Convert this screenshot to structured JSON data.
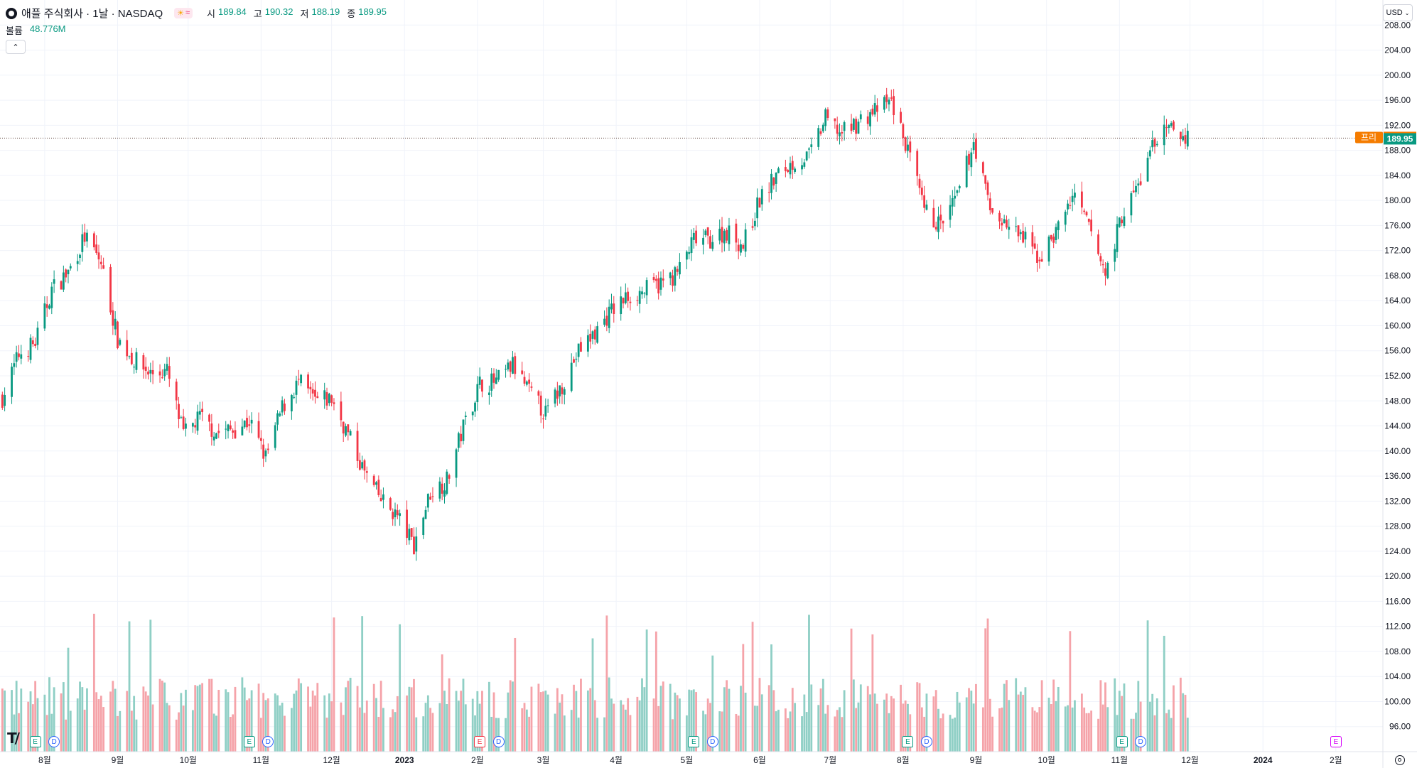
{
  "header": {
    "symbol_title": "애플 주식회사 · 1날 · NASDAQ",
    "ohlc": [
      {
        "key": "시",
        "value": "189.84"
      },
      {
        "key": "고",
        "value": "190.32"
      },
      {
        "key": "저",
        "value": "188.19"
      },
      {
        "key": "종",
        "value": "189.95"
      }
    ],
    "volume_label": "볼륨",
    "volume_value": "48.776M",
    "currency": "USD"
  },
  "colors": {
    "up": "#089981",
    "down": "#f23645",
    "volume_up": "#8fcfc5",
    "volume_down": "#f5a3a9",
    "premarket": "#f57c00",
    "grid": "#f0f3fa",
    "axis_text": "#131722"
  },
  "icons": {
    "settings": "gear-icon",
    "collapse": "chevron-up-icon",
    "currency_menu": "chevron-down-icon",
    "logo": "tradingview-logo"
  },
  "events": [
    {
      "type": "E",
      "date": "2022-07-28",
      "kind": "earnings"
    },
    {
      "type": "D",
      "date": "2022-08-05",
      "kind": "dividend"
    },
    {
      "type": "E",
      "date": "2022-10-27",
      "kind": "earnings"
    },
    {
      "type": "D",
      "date": "2022-11-04",
      "kind": "dividend"
    },
    {
      "type": "E",
      "date": "2023-02-02",
      "kind": "earnings-miss"
    },
    {
      "type": "D",
      "date": "2023-02-10",
      "kind": "dividend"
    },
    {
      "type": "E",
      "date": "2023-05-04",
      "kind": "earnings"
    },
    {
      "type": "D",
      "date": "2023-05-12",
      "kind": "dividend"
    },
    {
      "type": "E",
      "date": "2023-08-03",
      "kind": "earnings"
    },
    {
      "type": "D",
      "date": "2023-08-11",
      "kind": "dividend"
    },
    {
      "type": "E",
      "date": "2023-11-02",
      "kind": "earnings"
    },
    {
      "type": "D",
      "date": "2023-11-10",
      "kind": "dividend"
    },
    {
      "type": "E",
      "date": "2024-02-01",
      "kind": "earnings-upcoming"
    }
  ],
  "chart_data": {
    "type": "candlestick",
    "title": "애플 주식회사 · 1날 · NASDAQ",
    "currency": "USD",
    "ylim": [
      92,
      212
    ],
    "y_ticks": [
      "96.00",
      "100.00",
      "104.00",
      "108.00",
      "112.00",
      "116.00",
      "120.00",
      "124.00",
      "128.00",
      "132.00",
      "136.00",
      "140.00",
      "144.00",
      "148.00",
      "152.00",
      "156.00",
      "160.00",
      "164.00",
      "168.00",
      "172.00",
      "176.00",
      "180.00",
      "184.00",
      "188.00",
      "192.00",
      "196.00",
      "200.00",
      "204.00",
      "208.00"
    ],
    "x_ticks": [
      {
        "label": "8월",
        "date": "2022-08-01"
      },
      {
        "label": "9월",
        "date": "2022-09-01"
      },
      {
        "label": "10월",
        "date": "2022-10-01"
      },
      {
        "label": "11월",
        "date": "2022-11-01"
      },
      {
        "label": "12월",
        "date": "2022-12-01"
      },
      {
        "label": "2023",
        "date": "2023-01-01"
      },
      {
        "label": "2월",
        "date": "2023-02-01"
      },
      {
        "label": "3월",
        "date": "2023-03-01"
      },
      {
        "label": "4월",
        "date": "2023-04-01"
      },
      {
        "label": "5월",
        "date": "2023-05-01"
      },
      {
        "label": "6월",
        "date": "2023-06-01"
      },
      {
        "label": "7월",
        "date": "2023-07-01"
      },
      {
        "label": "8월",
        "date": "2023-08-01"
      },
      {
        "label": "9월",
        "date": "2023-09-01"
      },
      {
        "label": "10월",
        "date": "2023-10-01"
      },
      {
        "label": "11월",
        "date": "2023-11-01"
      },
      {
        "label": "12월",
        "date": "2023-12-01"
      },
      {
        "label": "2024",
        "date": "2024-01-01"
      },
      {
        "label": "2월",
        "date": "2024-02-01"
      }
    ],
    "x_range": [
      "2022-07-13",
      "2024-02-21"
    ],
    "last_price": {
      "value": "189.95",
      "label": ""
    },
    "premarket_price": {
      "value": "190.06",
      "label": "프리"
    },
    "closes": [
      {
        "date": "2022-07-14",
        "close": 148.5
      },
      {
        "date": "2022-07-21",
        "close": 155.4
      },
      {
        "date": "2022-07-28",
        "close": 157.3
      },
      {
        "date": "2022-08-04",
        "close": 165.8
      },
      {
        "date": "2022-08-11",
        "close": 168.5
      },
      {
        "date": "2022-08-18",
        "close": 174.2
      },
      {
        "date": "2022-08-25",
        "close": 170.0
      },
      {
        "date": "2022-09-01",
        "close": 157.9
      },
      {
        "date": "2022-09-08",
        "close": 154.5
      },
      {
        "date": "2022-09-15",
        "close": 152.4
      },
      {
        "date": "2022-09-22",
        "close": 152.7
      },
      {
        "date": "2022-09-29",
        "close": 142.5
      },
      {
        "date": "2022-10-06",
        "close": 145.4
      },
      {
        "date": "2022-10-13",
        "close": 142.9
      },
      {
        "date": "2022-10-20",
        "close": 143.4
      },
      {
        "date": "2022-10-27",
        "close": 144.8
      },
      {
        "date": "2022-11-03",
        "close": 138.9
      },
      {
        "date": "2022-11-10",
        "close": 146.9
      },
      {
        "date": "2022-11-17",
        "close": 151.0
      },
      {
        "date": "2022-11-24",
        "close": 148.0
      },
      {
        "date": "2022-12-01",
        "close": 148.3
      },
      {
        "date": "2022-12-08",
        "close": 142.6
      },
      {
        "date": "2022-12-15",
        "close": 136.5
      },
      {
        "date": "2022-12-22",
        "close": 132.2
      },
      {
        "date": "2022-12-29",
        "close": 129.6
      },
      {
        "date": "2023-01-05",
        "close": 125.0
      },
      {
        "date": "2023-01-12",
        "close": 133.4
      },
      {
        "date": "2023-01-19",
        "close": 135.3
      },
      {
        "date": "2023-01-26",
        "close": 143.9
      },
      {
        "date": "2023-02-02",
        "close": 150.8
      },
      {
        "date": "2023-02-09",
        "close": 151.0
      },
      {
        "date": "2023-02-16",
        "close": 153.7
      },
      {
        "date": "2023-02-23",
        "close": 149.4
      },
      {
        "date": "2023-03-02",
        "close": 145.9
      },
      {
        "date": "2023-03-09",
        "close": 150.6
      },
      {
        "date": "2023-03-16",
        "close": 155.9
      },
      {
        "date": "2023-03-23",
        "close": 158.9
      },
      {
        "date": "2023-03-30",
        "close": 162.4
      },
      {
        "date": "2023-04-06",
        "close": 164.7
      },
      {
        "date": "2023-04-13",
        "close": 165.6
      },
      {
        "date": "2023-04-20",
        "close": 166.7
      },
      {
        "date": "2023-04-27",
        "close": 168.4
      },
      {
        "date": "2023-05-04",
        "close": 173.6
      },
      {
        "date": "2023-05-11",
        "close": 173.8
      },
      {
        "date": "2023-05-18",
        "close": 175.1
      },
      {
        "date": "2023-05-25",
        "close": 172.8
      },
      {
        "date": "2023-06-01",
        "close": 180.1
      },
      {
        "date": "2023-06-08",
        "close": 183.8
      },
      {
        "date": "2023-06-15",
        "close": 186.0
      },
      {
        "date": "2023-06-22",
        "close": 187.0
      },
      {
        "date": "2023-06-29",
        "close": 193.0
      },
      {
        "date": "2023-07-06",
        "close": 190.7
      },
      {
        "date": "2023-07-13",
        "close": 192.5
      },
      {
        "date": "2023-07-20",
        "close": 194.3
      },
      {
        "date": "2023-07-27",
        "close": 195.8
      },
      {
        "date": "2023-08-03",
        "close": 187.9
      },
      {
        "date": "2023-08-10",
        "close": 178.2
      },
      {
        "date": "2023-08-17",
        "close": 176.0
      },
      {
        "date": "2023-08-24",
        "close": 180.5
      },
      {
        "date": "2023-08-31",
        "close": 189.5
      },
      {
        "date": "2023-09-07",
        "close": 178.5
      },
      {
        "date": "2023-09-14",
        "close": 176.0
      },
      {
        "date": "2023-09-21",
        "close": 173.9
      },
      {
        "date": "2023-09-28",
        "close": 170.7
      },
      {
        "date": "2023-10-05",
        "close": 175.0
      },
      {
        "date": "2023-10-12",
        "close": 180.7
      },
      {
        "date": "2023-10-19",
        "close": 175.8
      },
      {
        "date": "2023-10-26",
        "close": 168.2
      },
      {
        "date": "2023-11-02",
        "close": 177.6
      },
      {
        "date": "2023-11-09",
        "close": 182.4
      },
      {
        "date": "2023-11-16",
        "close": 189.7
      },
      {
        "date": "2023-11-23",
        "close": 191.3
      },
      {
        "date": "2023-11-30",
        "close": 189.95
      }
    ]
  }
}
